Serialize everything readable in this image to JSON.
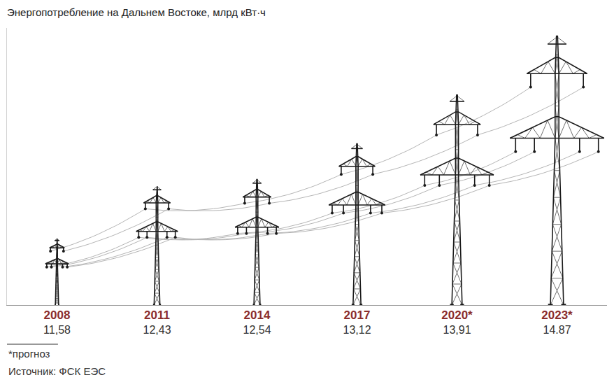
{
  "chart_data": {
    "type": "bar",
    "title": "Энергопотребление на Дальнем Востоке, млрд кВт·ч",
    "categories": [
      "2008",
      "2011",
      "2014",
      "2017",
      "2020*",
      "2023*"
    ],
    "values": [
      11.58,
      12.43,
      12.54,
      13.12,
      13.91,
      14.87
    ],
    "value_labels": [
      "11,58",
      "12,43",
      "12,54",
      "13,12",
      "13,91",
      "14.87"
    ],
    "data_labels": true,
    "ylim": [
      10.5,
      15
    ],
    "tick_labels": "x",
    "grid": false,
    "color": "#1a1a1a",
    "footnote": "*прогноз",
    "source": "Источник: ФСК ЕЭС"
  }
}
